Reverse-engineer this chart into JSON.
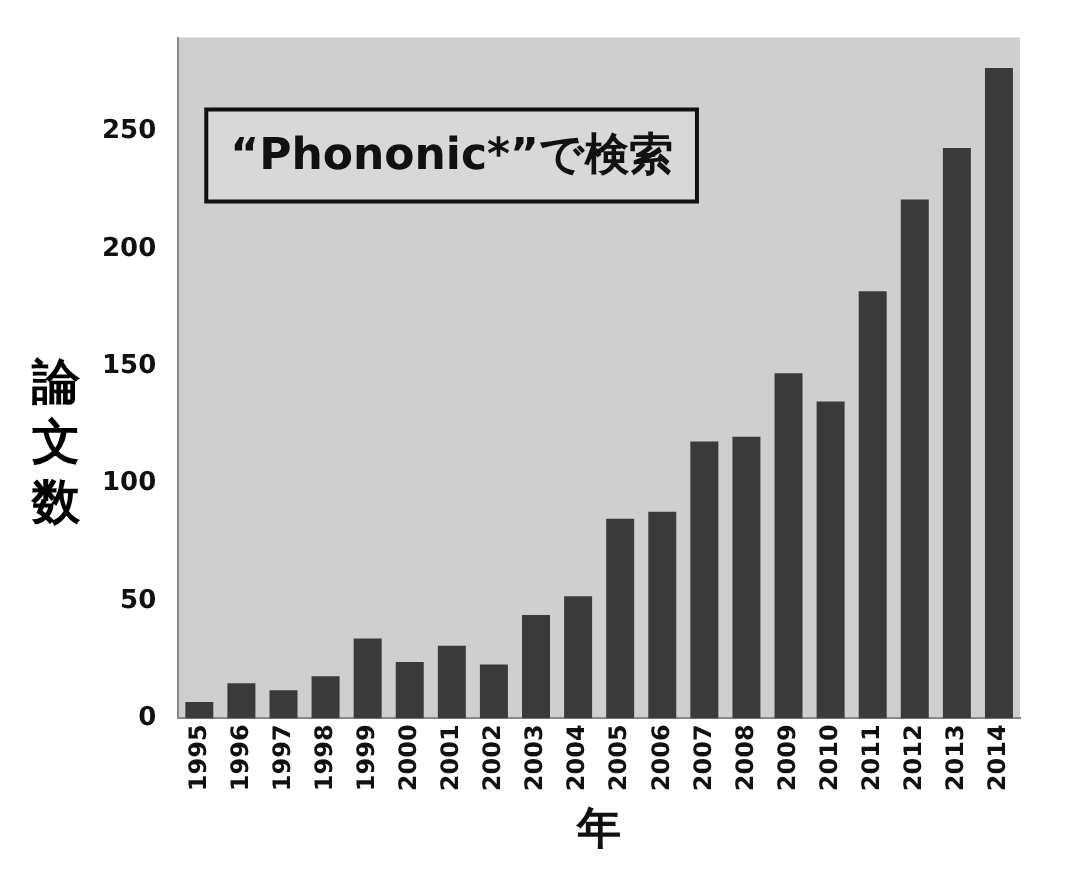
{
  "chart_data": {
    "type": "bar",
    "xlabel": "年",
    "ylabel": "論文数",
    "categories": [
      "1995",
      "1996",
      "1997",
      "1998",
      "1999",
      "2000",
      "2001",
      "2002",
      "2003",
      "2004",
      "2005",
      "2006",
      "2007",
      "2008",
      "2009",
      "2010",
      "2011",
      "2012",
      "2013",
      "2014"
    ],
    "values": [
      7,
      15,
      12,
      18,
      34,
      24,
      31,
      23,
      44,
      52,
      85,
      88,
      118,
      120,
      147,
      135,
      182,
      221,
      243,
      277
    ],
    "color": "#3a3a3a",
    "ylim": [
      0,
      290
    ],
    "yticks": [
      0,
      50,
      100,
      150,
      200,
      250
    ],
    "grid": false,
    "legend": false,
    "annotations": [
      "“Phononic*”で検索"
    ]
  }
}
